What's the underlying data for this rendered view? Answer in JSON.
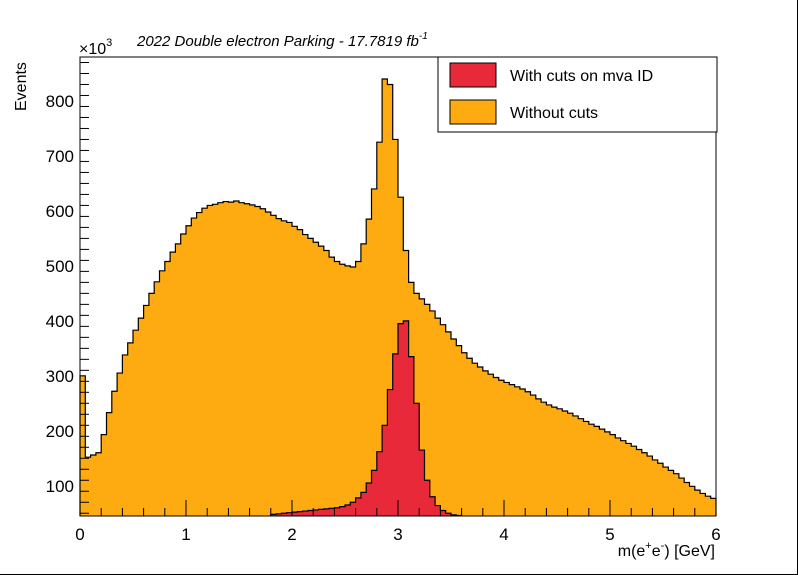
{
  "chart_data": {
    "type": "bar",
    "title": "2022 Double electron Parking - 17.7819 fb",
    "title_superscript": "-1",
    "xlabel": "m(e",
    "xlabel_sup1": "+",
    "xlabel_mid": "e",
    "xlabel_sup2": "-",
    "xlabel_end": ") [GeV]",
    "ylabel": "Events",
    "y_multiplier_base": "×10",
    "y_multiplier_exp": "3",
    "xlim": [
      0,
      6
    ],
    "ylim": [
      45,
      880
    ],
    "x_ticks": [
      "0",
      "1",
      "2",
      "3",
      "4",
      "5",
      "6"
    ],
    "y_ticks": [
      "100",
      "200",
      "300",
      "400",
      "500",
      "600",
      "700",
      "800"
    ],
    "bin_width": 0.05,
    "legend_position": "top-right",
    "series": [
      {
        "name": "Without cuts",
        "color": "#FDAB10",
        "values": [
          300,
          152,
          156,
          160,
          193,
          233,
          272,
          305,
          338,
          360,
          383,
          405,
          428,
          450,
          471,
          491,
          508,
          525,
          540,
          558,
          573,
          587,
          597,
          605,
          610,
          612,
          615,
          617,
          616,
          618,
          615,
          613,
          611,
          608,
          604,
          598,
          592,
          586,
          582,
          579,
          572,
          566,
          557,
          550,
          543,
          536,
          528,
          516,
          508,
          503,
          500,
          498,
          508,
          540,
          585,
          640,
          725,
          840,
          830,
          730,
          625,
          528,
          470,
          450,
          440,
          430,
          418,
          405,
          393,
          380,
          367,
          355,
          342,
          332,
          323,
          316,
          309,
          303,
          297,
          292,
          288,
          284,
          280,
          276,
          271,
          265,
          258,
          252,
          247,
          243,
          240,
          236,
          232,
          227,
          222,
          217,
          212,
          208,
          203,
          198,
          193,
          187,
          182,
          177,
          172,
          166,
          160,
          154,
          147,
          141,
          134,
          128,
          122,
          114,
          106,
          99,
          92,
          86,
          81,
          77
        ]
      },
      {
        "name": "With cuts on mva ID",
        "color": "#E8293A",
        "values": [
          0,
          0,
          0,
          0,
          0,
          0,
          0,
          0,
          0,
          0,
          0,
          0,
          0,
          0,
          0,
          0,
          0,
          0,
          0,
          0,
          0,
          0,
          0,
          0,
          0,
          0,
          0,
          0,
          0,
          0,
          0,
          0,
          0,
          0,
          0,
          0,
          48,
          49,
          50,
          51,
          52,
          53,
          54,
          55,
          56,
          57,
          58,
          59,
          60,
          62,
          65,
          70,
          78,
          88,
          105,
          128,
          162,
          210,
          275,
          340,
          395,
          400,
          335,
          250,
          165,
          110,
          80,
          64,
          55,
          50,
          47,
          46,
          45,
          45,
          0,
          0,
          0,
          0,
          0,
          0,
          0,
          0,
          0,
          0,
          0,
          0,
          0,
          0,
          0,
          0,
          0,
          0,
          0,
          0,
          0,
          0,
          0,
          0,
          0,
          0,
          0,
          0,
          0,
          0,
          0,
          0,
          0,
          0,
          0,
          0,
          0,
          0,
          0,
          0,
          0,
          0,
          0,
          0,
          0,
          0
        ]
      }
    ],
    "legend": [
      "With cuts on mva ID",
      "Without cuts"
    ]
  }
}
